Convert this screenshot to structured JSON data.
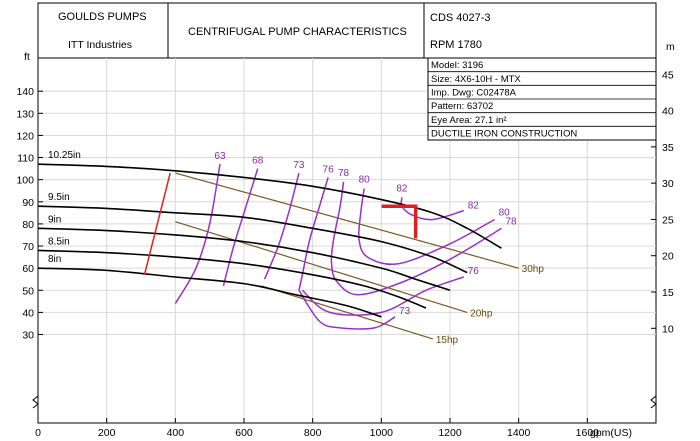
{
  "header": {
    "company": "GOULDS PUMPS",
    "division": "ITT Industries",
    "title": "CENTRIFUGAL PUMP CHARACTERISTICS",
    "cds": "CDS  4027-3",
    "rpm": "RPM    1780"
  },
  "info_box": [
    "Model: 3196",
    "Size: 4X6-10H - MTX",
    "Imp. Dwg: C02478A",
    "Pattern: 63702",
    "Eye Area: 27.1 in²",
    "DUCTILE IRON CONSTRUCTION"
  ],
  "colors": {
    "head_curve": "#000000",
    "efficiency": "#9b30c8",
    "power": "#7a5a1f",
    "min_flow": "#e02020",
    "marker": "#e02020",
    "grid": "#d8d8d8"
  },
  "chart_data": {
    "type": "line",
    "xlabel": "gpm(US)",
    "ylabel_left": "ft",
    "ylabel_right": "m",
    "xlim": [
      0,
      1800
    ],
    "ylim": [
      -10,
      155
    ],
    "x_ticks": [
      0,
      200,
      400,
      600,
      800,
      1000,
      1200,
      1400,
      1600
    ],
    "y_ticks_left": [
      30,
      40,
      50,
      60,
      70,
      80,
      90,
      100,
      110,
      120,
      130,
      140
    ],
    "y_ticks_right": [
      10,
      15,
      20,
      25,
      30,
      35,
      40,
      45
    ],
    "grid": true,
    "head_curves": [
      {
        "name": "10.25in",
        "points": [
          [
            0,
            107
          ],
          [
            200,
            106
          ],
          [
            400,
            104
          ],
          [
            600,
            101
          ],
          [
            800,
            97
          ],
          [
            1000,
            91
          ],
          [
            1150,
            85
          ],
          [
            1250,
            78
          ],
          [
            1350,
            69
          ]
        ]
      },
      {
        "name": "9.5in",
        "points": [
          [
            0,
            88
          ],
          [
            200,
            87
          ],
          [
            400,
            85
          ],
          [
            600,
            83
          ],
          [
            800,
            78
          ],
          [
            1000,
            72
          ],
          [
            1150,
            65
          ],
          [
            1250,
            58
          ]
        ]
      },
      {
        "name": "9in",
        "points": [
          [
            0,
            78
          ],
          [
            200,
            77
          ],
          [
            400,
            75
          ],
          [
            600,
            72
          ],
          [
            800,
            67
          ],
          [
            1000,
            60
          ],
          [
            1100,
            55
          ],
          [
            1200,
            50
          ]
        ]
      },
      {
        "name": "8.5in",
        "points": [
          [
            0,
            68
          ],
          [
            200,
            67
          ],
          [
            400,
            65
          ],
          [
            600,
            62
          ],
          [
            800,
            57
          ],
          [
            950,
            52
          ],
          [
            1050,
            47
          ],
          [
            1130,
            42
          ]
        ]
      },
      {
        "name": "8in",
        "points": [
          [
            0,
            60
          ],
          [
            200,
            59
          ],
          [
            400,
            56
          ],
          [
            600,
            53
          ],
          [
            750,
            48
          ],
          [
            900,
            43
          ],
          [
            1000,
            38
          ]
        ]
      }
    ],
    "efficiency_lines": [
      {
        "name": "63",
        "points": [
          [
            530,
            107
          ],
          [
            500,
            80
          ],
          [
            460,
            60
          ],
          [
            400,
            44
          ]
        ]
      },
      {
        "name": "68",
        "points": [
          [
            640,
            105
          ],
          [
            600,
            85
          ],
          [
            570,
            70
          ],
          [
            540,
            52
          ]
        ]
      },
      {
        "name": "73",
        "points": [
          [
            760,
            103
          ],
          [
            730,
            85
          ],
          [
            700,
            70
          ],
          [
            660,
            55
          ]
        ]
      },
      {
        "name": "76",
        "points": [
          [
            845,
            101
          ],
          [
            820,
            88
          ],
          [
            790,
            72
          ],
          [
            770,
            57
          ],
          [
            760,
            50
          ]
        ]
      },
      {
        "name": "78",
        "points": [
          [
            890,
            99
          ],
          [
            880,
            88
          ],
          [
            860,
            72
          ],
          [
            855,
            62
          ],
          [
            870,
            54
          ],
          [
            930,
            48
          ],
          [
            1050,
            53
          ],
          [
            1200,
            64
          ],
          [
            1350,
            78
          ]
        ]
      },
      {
        "name": "80",
        "points": [
          [
            950,
            96
          ],
          [
            940,
            85
          ],
          [
            935,
            73
          ],
          [
            960,
            65
          ],
          [
            1050,
            62
          ],
          [
            1200,
            71
          ],
          [
            1330,
            82
          ]
        ]
      },
      {
        "name": "82",
        "points": [
          [
            1060,
            92
          ],
          [
            1060,
            88
          ],
          [
            1090,
            84
          ],
          [
            1150,
            82
          ],
          [
            1240,
            86
          ]
        ]
      },
      {
        "name": "76",
        "points": [
          [
            770,
            50
          ],
          [
            850,
            40
          ],
          [
            1000,
            40
          ],
          [
            1130,
            50
          ],
          [
            1240,
            56
          ]
        ]
      },
      {
        "name": "73",
        "points": [
          [
            760,
            50
          ],
          [
            820,
            36
          ],
          [
            880,
            33
          ],
          [
            980,
            33
          ],
          [
            1040,
            38
          ]
        ]
      }
    ],
    "power_lines": [
      {
        "name": "30hp",
        "points": [
          [
            400,
            103
          ],
          [
            1400,
            60
          ]
        ]
      },
      {
        "name": "20hp",
        "points": [
          [
            400,
            81
          ],
          [
            1250,
            40
          ]
        ]
      },
      {
        "name": "15hp",
        "points": [
          [
            650,
            52
          ],
          [
            1150,
            28
          ]
        ]
      }
    ],
    "min_flow_line": {
      "points": [
        [
          385,
          103
        ],
        [
          310,
          57
        ]
      ]
    },
    "marker": {
      "x": 1100,
      "y": 88
    }
  }
}
